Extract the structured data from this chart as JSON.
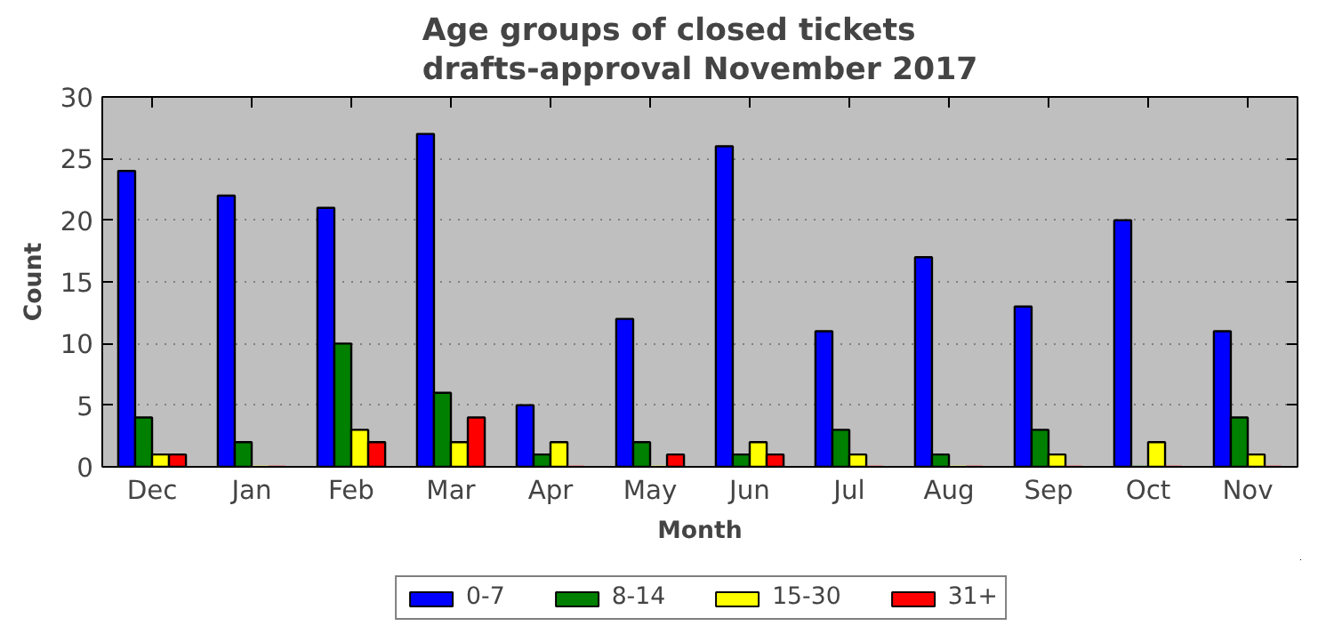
{
  "chart_data": {
    "type": "bar",
    "title": "Age groups of closed tickets\ndrafts-approval November 2017",
    "xlabel": "Month",
    "ylabel": "Count",
    "categories": [
      "Dec",
      "Jan",
      "Feb",
      "Mar",
      "Apr",
      "May",
      "Jun",
      "Jul",
      "Aug",
      "Sep",
      "Oct",
      "Nov"
    ],
    "series": [
      {
        "name": "0-7",
        "color": "#0000ff",
        "values": [
          24,
          22,
          21,
          27,
          5,
          12,
          26,
          11,
          17,
          13,
          20,
          11
        ]
      },
      {
        "name": "8-14",
        "color": "#008000",
        "values": [
          4,
          2,
          10,
          6,
          1,
          2,
          1,
          3,
          1,
          3,
          0,
          4
        ]
      },
      {
        "name": "15-30",
        "color": "#ffff00",
        "values": [
          1,
          0,
          3,
          2,
          2,
          0,
          2,
          1,
          0,
          1,
          2,
          1
        ]
      },
      {
        "name": "31+",
        "color": "#ff0000",
        "values": [
          1,
          0,
          2,
          4,
          0,
          1,
          1,
          0,
          0,
          0,
          0,
          0
        ]
      }
    ],
    "ylim": [
      0,
      30
    ],
    "yticks": [
      0,
      5,
      10,
      15,
      20,
      25,
      30
    ],
    "grid": "y",
    "legend": "bottom"
  }
}
